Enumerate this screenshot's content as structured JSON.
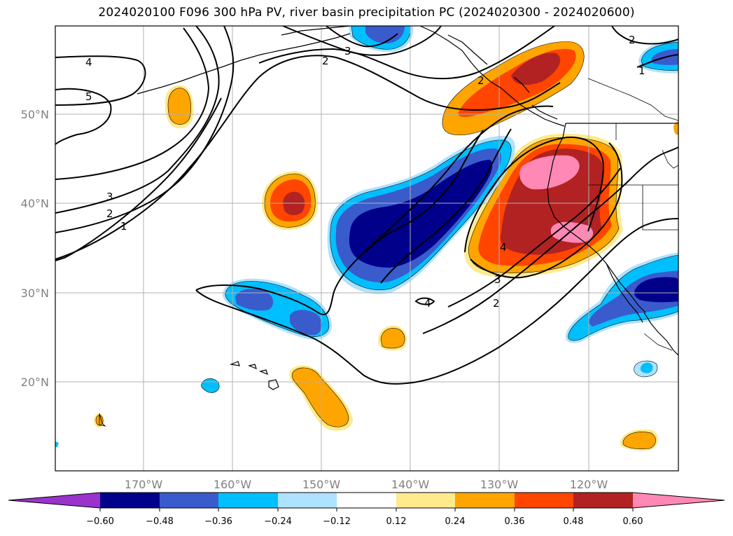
{
  "title": "2024020100 F096 300 hPa PV, river basin precipitation PC (2024020300 - 2024020600)",
  "colors": {
    "neg_060_plus": "#9933cc",
    "neg_048_060": "#00008b",
    "neg_036_048": "#3a5bcc",
    "neg_024_036": "#00bfff",
    "neg_012_024": "#ade3ff",
    "neutral": "#ffffff",
    "pos_012_024": "#ffea8c",
    "pos_024_036": "#ffa500",
    "pos_036_048": "#ff4500",
    "pos_048_060": "#b22222",
    "pos_060_plus": "#ff88b4"
  },
  "map": {
    "lat_labels": [
      "50°N",
      "40°N",
      "30°N",
      "20°N"
    ],
    "lon_labels": [
      "170°W",
      "160°W",
      "150°W",
      "140°W",
      "130°W",
      "120°W"
    ]
  },
  "contour_labels": [
    "4",
    "5",
    "3",
    "2",
    "1",
    "2",
    "3",
    "2",
    "4",
    "3",
    "2",
    "4",
    "2",
    "1"
  ],
  "colorbar": {
    "ticks": [
      "−0.60",
      "−0.48",
      "−0.36",
      "−0.24",
      "−0.12",
      "0.12",
      "0.24",
      "0.36",
      "0.48",
      "0.60"
    ]
  }
}
